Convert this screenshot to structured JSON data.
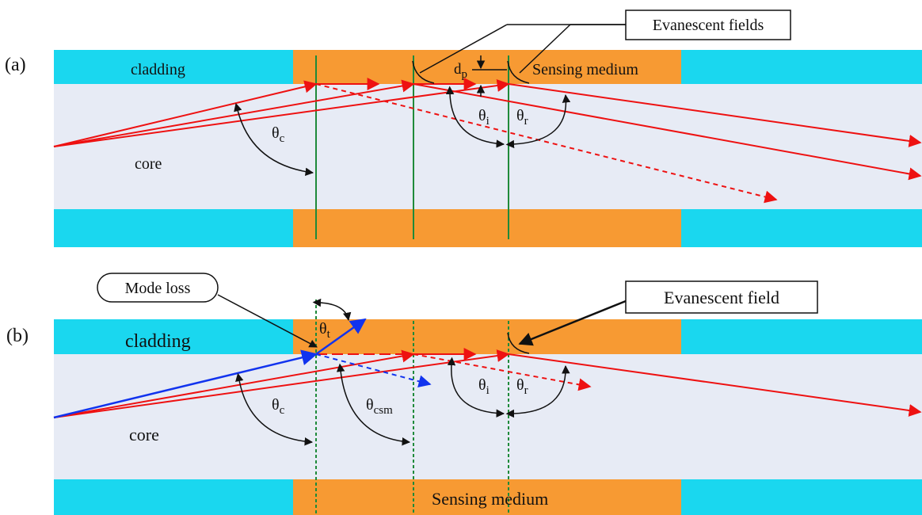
{
  "panel_a": {
    "label": "(a)",
    "cladding": "cladding",
    "core": "core",
    "sensing_medium": "Sensing medium",
    "callout": "Evanescent fields",
    "depth_symbol": "d",
    "depth_sub": "p",
    "theta": "θ",
    "theta_c_sub": "c",
    "theta_i_sub": "i",
    "theta_r_sub": "r"
  },
  "panel_b": {
    "label": "(b)",
    "cladding": "cladding",
    "core": "core",
    "sensing_medium": "Sensing medium",
    "callout": "Evanescent field",
    "mode_loss": "Mode loss",
    "theta": "θ",
    "theta_t_sub": "t",
    "theta_c_sub": "c",
    "theta_csm_sub": "csm",
    "theta_i_sub": "i",
    "theta_r_sub": "r"
  },
  "colors": {
    "cladding": "#1ad7ef",
    "core": "#e7ebf5",
    "sensing": "#f79a33",
    "ray": "#ee1111",
    "leak_ray": "#1133ee",
    "normal": "#1f8a3a",
    "arc": "#111111"
  }
}
